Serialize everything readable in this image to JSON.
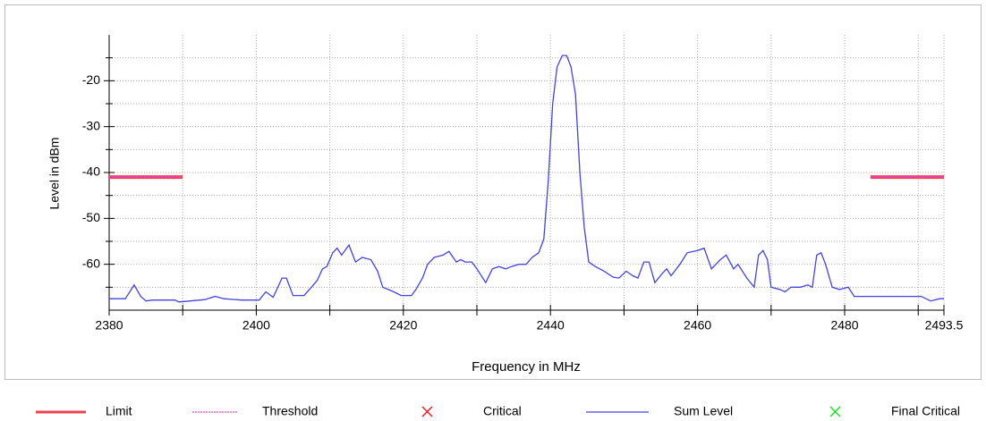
{
  "chart_data": {
    "type": "line",
    "xlabel": "Frequency in MHz",
    "ylabel": "Level in dBm",
    "xlim": [
      2380,
      2493.5
    ],
    "ylim": [
      -70,
      -10
    ],
    "xticks": [
      2380,
      2400,
      2420,
      2440,
      2460,
      2480,
      2493.5
    ],
    "xminorticks": [
      2390,
      2410,
      2430,
      2450,
      2470,
      2490
    ],
    "yticks": [
      -20,
      -30,
      -40,
      -50,
      -60
    ],
    "yminorticks": [
      -15,
      -25,
      -35,
      -45,
      -55,
      -65
    ],
    "grid": true,
    "series": [
      {
        "name": "Limit",
        "color": "#f04050",
        "style": "solid",
        "segments": [
          {
            "x": [
              2380,
              2390
            ],
            "values": [
              -41,
              -41
            ]
          },
          {
            "x": [
              2483.5,
              2493.5
            ],
            "values": [
              -41,
              -41
            ]
          }
        ]
      },
      {
        "name": "Threshold",
        "color": "#dd44dd",
        "style": "dotted",
        "segments": [
          {
            "x": [
              2380,
              2390
            ],
            "values": [
              -41,
              -41
            ]
          },
          {
            "x": [
              2483.5,
              2493.5
            ],
            "values": [
              -41,
              -41
            ]
          }
        ]
      },
      {
        "name": "Critical",
        "color": "#ee2020",
        "style": "x",
        "x": [],
        "values": []
      },
      {
        "name": "Sum Level",
        "color": "#4444dd",
        "style": "solid",
        "x": [
          2380,
          2382.2,
          2383.4,
          2384.3,
          2385,
          2385.9,
          2388.9,
          2389.5,
          2393,
          2394.4,
          2395.6,
          2398,
          2400.4,
          2401.3,
          2402.3,
          2403.5,
          2404.1,
          2405,
          2406.5,
          2407.5,
          2408.3,
          2409,
          2409.6,
          2410.4,
          2411,
          2411.6,
          2412.6,
          2413.5,
          2414.4,
          2415.6,
          2416.5,
          2417.2,
          2418.7,
          2419.7,
          2421.1,
          2421.7,
          2422.6,
          2423.3,
          2424.2,
          2425.4,
          2426.2,
          2427.2,
          2427.8,
          2428.4,
          2429.3,
          2430,
          2431.2,
          2432.1,
          2433,
          2433.9,
          2434.7,
          2435.7,
          2436.7,
          2437.5,
          2438.4,
          2439.1,
          2439.7,
          2440.3,
          2440.9,
          2441.6,
          2442.2,
          2442.8,
          2443.4,
          2444,
          2444.6,
          2445.2,
          2446.1,
          2447.3,
          2448.5,
          2449.3,
          2450.3,
          2451.2,
          2451.9,
          2452.7,
          2453.4,
          2454.2,
          2455.2,
          2455.8,
          2456.4,
          2457.6,
          2458.6,
          2460,
          2460.9,
          2461.9,
          2463.1,
          2463.9,
          2464.9,
          2465.5,
          2466.7,
          2467.7,
          2468.3,
          2468.9,
          2469.5,
          2470,
          2471.2,
          2471.9,
          2472.7,
          2474,
          2475,
          2475.6,
          2476.2,
          2476.8,
          2477.4,
          2478.3,
          2479.3,
          2480.5,
          2481.3,
          2483.2,
          2489.2,
          2490.4,
          2491.7,
          2492.9,
          2493.5
        ],
        "values": [
          -67.5,
          -67.5,
          -64.5,
          -67,
          -68,
          -67.8,
          -67.8,
          -68.2,
          -67.7,
          -67,
          -67.5,
          -67.8,
          -67.8,
          -66,
          -67.2,
          -63,
          -63,
          -66.8,
          -66.8,
          -65,
          -63.5,
          -61,
          -60.5,
          -57.5,
          -56.5,
          -58,
          -55.8,
          -59.5,
          -58.5,
          -59,
          -61.5,
          -65,
          -66,
          -66.8,
          -66.8,
          -65.5,
          -63,
          -60,
          -58.5,
          -58,
          -57.2,
          -59.5,
          -59,
          -59.5,
          -59.5,
          -61,
          -64,
          -61,
          -60.5,
          -61,
          -60.5,
          -60,
          -60,
          -58.5,
          -57.5,
          -54.5,
          -42,
          -25,
          -17,
          -14.5,
          -14.5,
          -17,
          -23,
          -40,
          -52,
          -59.5,
          -60.5,
          -61.5,
          -62.8,
          -63,
          -61.5,
          -62.5,
          -63,
          -59.5,
          -59.5,
          -64,
          -62,
          -61,
          -62.5,
          -60,
          -57.5,
          -57,
          -56.5,
          -61,
          -59,
          -58,
          -61,
          -60,
          -63,
          -65,
          -58,
          -57,
          -59,
          -65,
          -65.5,
          -66,
          -65,
          -65,
          -64.5,
          -65,
          -58,
          -57.5,
          -60,
          -65,
          -65.5,
          -65,
          -67,
          -67,
          -67,
          -67,
          -68,
          -67.5,
          -67.5
        ]
      },
      {
        "name": "Final Critical",
        "color": "#22dd22",
        "style": "x",
        "x": [],
        "values": []
      }
    ]
  }
}
